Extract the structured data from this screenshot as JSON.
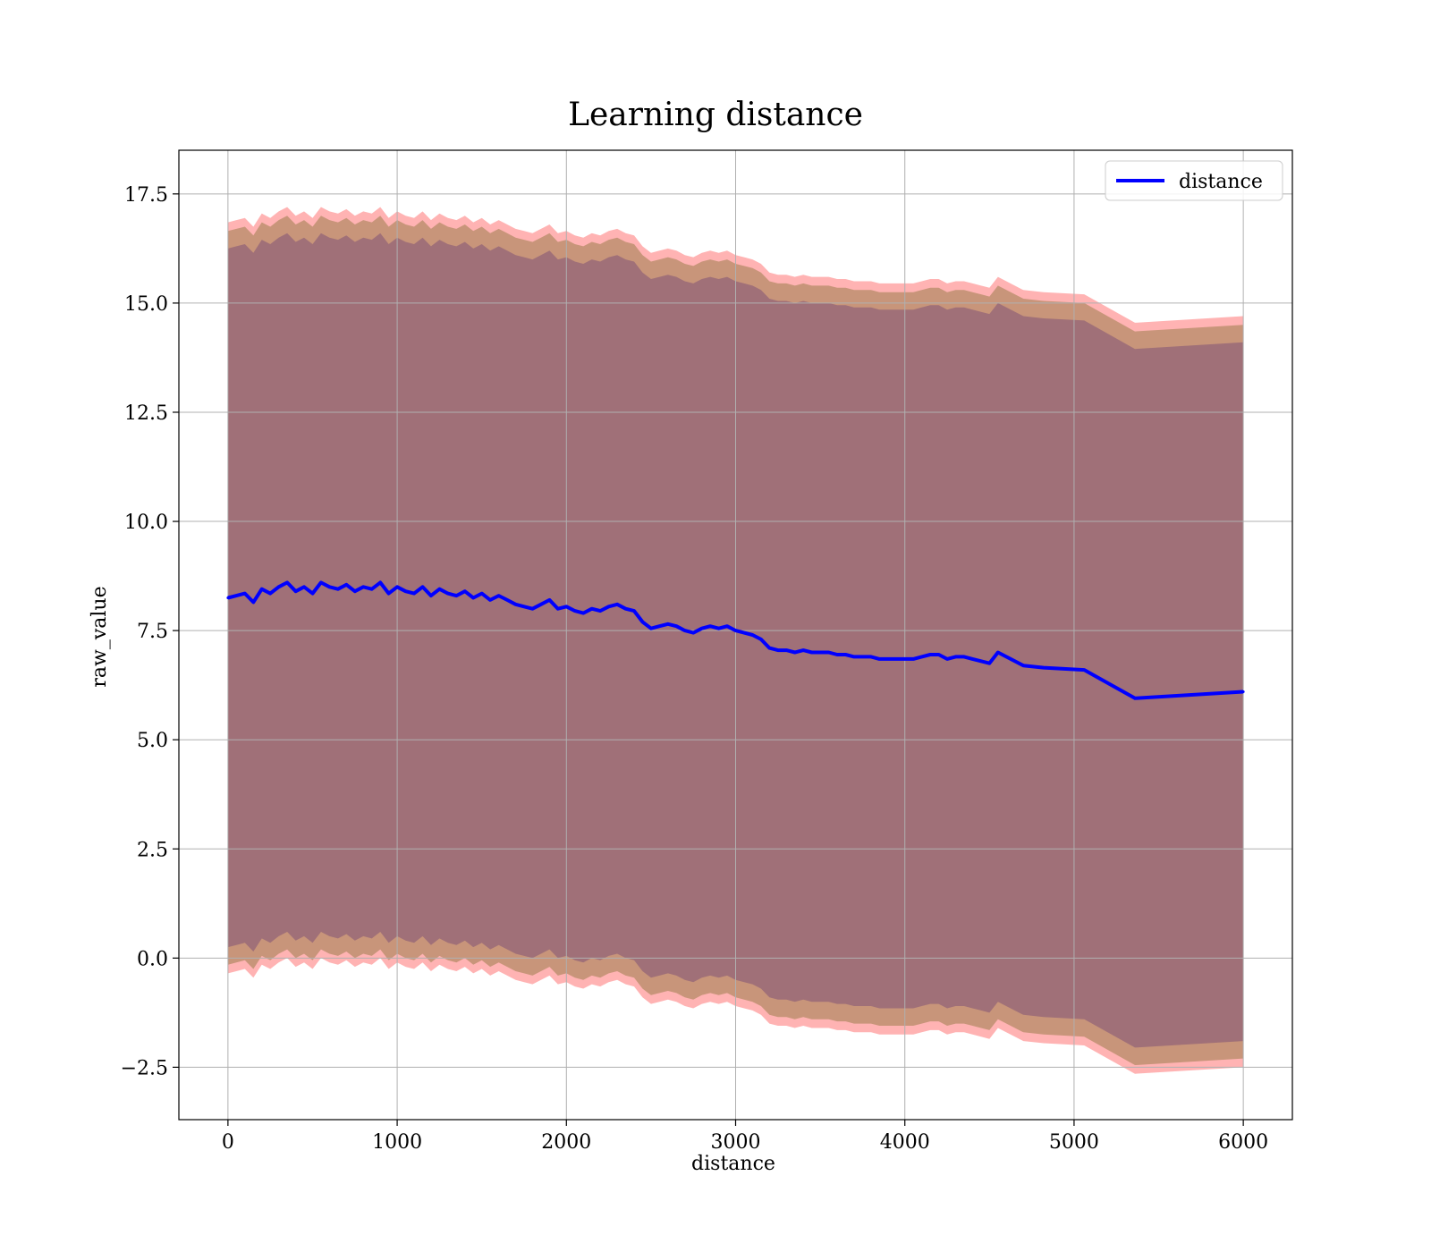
{
  "chart_data": {
    "type": "line",
    "title": "Learning distance",
    "xlabel": "distance",
    "ylabel": "raw_value",
    "xlim": [
      -290,
      6290
    ],
    "ylim": [
      -3.7,
      18.5
    ],
    "xticks": [
      0,
      1000,
      2000,
      3000,
      4000,
      5000,
      6000
    ],
    "xtick_labels": [
      "0",
      "1000",
      "2000",
      "3000",
      "4000",
      "5000",
      "6000"
    ],
    "yticks": [
      -2.5,
      0.0,
      2.5,
      5.0,
      7.5,
      10.0,
      12.5,
      15.0,
      17.5
    ],
    "ytick_labels": [
      "−2.5",
      "0.0",
      "2.5",
      "5.0",
      "7.5",
      "10.0",
      "12.5",
      "15.0",
      "17.5"
    ],
    "grid": true,
    "legend": {
      "position": "top-right",
      "entries": [
        "distance"
      ]
    },
    "colors": {
      "line": "#0000ff",
      "band_outer": "#ffb3b3",
      "band_middle": "#c8957a",
      "band_inner": "#a07078",
      "grid": "#b0b0b0"
    },
    "series": [
      {
        "name": "distance",
        "x": [
          0,
          50,
          100,
          150,
          200,
          250,
          300,
          350,
          400,
          450,
          500,
          550,
          600,
          650,
          700,
          750,
          800,
          850,
          900,
          950,
          1000,
          1050,
          1100,
          1150,
          1200,
          1250,
          1300,
          1350,
          1400,
          1450,
          1500,
          1550,
          1600,
          1650,
          1700,
          1750,
          1800,
          1850,
          1900,
          1950,
          2000,
          2050,
          2100,
          2150,
          2200,
          2250,
          2300,
          2350,
          2400,
          2450,
          2500,
          2550,
          2600,
          2650,
          2700,
          2750,
          2800,
          2850,
          2900,
          2950,
          3000,
          3050,
          3100,
          3150,
          3200,
          3250,
          3300,
          3350,
          3400,
          3450,
          3500,
          3550,
          3600,
          3650,
          3700,
          3750,
          3800,
          3850,
          3900,
          3950,
          4000,
          4050,
          4100,
          4150,
          4200,
          4250,
          4300,
          4350,
          4400,
          4450,
          4500,
          4550,
          4700,
          4820,
          5060,
          5360,
          6000
        ],
        "y": [
          8.25,
          8.3,
          8.35,
          8.15,
          8.45,
          8.35,
          8.5,
          8.6,
          8.4,
          8.5,
          8.35,
          8.6,
          8.5,
          8.45,
          8.55,
          8.4,
          8.5,
          8.45,
          8.6,
          8.35,
          8.5,
          8.4,
          8.35,
          8.5,
          8.3,
          8.45,
          8.35,
          8.3,
          8.4,
          8.25,
          8.35,
          8.2,
          8.3,
          8.2,
          8.1,
          8.05,
          8.0,
          8.1,
          8.2,
          8.0,
          8.05,
          7.95,
          7.9,
          8.0,
          7.95,
          8.05,
          8.1,
          8.0,
          7.95,
          7.7,
          7.55,
          7.6,
          7.65,
          7.6,
          7.5,
          7.45,
          7.55,
          7.6,
          7.55,
          7.6,
          7.5,
          7.45,
          7.4,
          7.3,
          7.1,
          7.05,
          7.05,
          7.0,
          7.05,
          7.0,
          7.0,
          7.0,
          6.95,
          6.95,
          6.9,
          6.9,
          6.9,
          6.85,
          6.85,
          6.85,
          6.85,
          6.85,
          6.9,
          6.95,
          6.95,
          6.85,
          6.9,
          6.9,
          6.85,
          6.8,
          6.75,
          7.0,
          6.7,
          6.65,
          6.6,
          5.95,
          6.1
        ]
      }
    ],
    "bands": [
      {
        "name": "outer",
        "offset_upper": 8.6,
        "offset_lower": -8.6
      },
      {
        "name": "middle",
        "offset_upper": 8.4,
        "offset_lower": -8.4
      },
      {
        "name": "inner",
        "offset_upper": 8.0,
        "offset_lower": -8.0
      }
    ]
  }
}
